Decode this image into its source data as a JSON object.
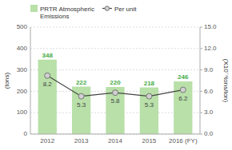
{
  "chart_data": {
    "type": "bar",
    "categories": [
      "2012",
      "2013",
      "2014",
      "2015",
      "2016 (FY)"
    ],
    "series": [
      {
        "name": "PRTR Atmospheric\nEmissions",
        "type": "bar",
        "color": "#b8e0a8",
        "values": [
          348,
          222,
          220,
          218,
          246
        ]
      },
      {
        "name": "Per unit",
        "type": "line",
        "axis": "y2",
        "color": "#444444",
        "marker": "circle",
        "values": [
          8.2,
          5.3,
          5.8,
          5.3,
          6.2
        ]
      }
    ],
    "y_label": "(tons)",
    "y2_label": "(X10⁻⁴tons/ton)",
    "ylim": [
      0,
      500
    ],
    "yticks": [
      0,
      100,
      200,
      300,
      400,
      500
    ],
    "y2lim": [
      0,
      15.0
    ],
    "y2ticks": [
      {
        "value": 0.0,
        "label": "0.0"
      },
      {
        "value": 3.0,
        "label": "3.0"
      },
      {
        "value": 6.0,
        "label": "6.0"
      },
      {
        "value": 9.0,
        "label": "9.0"
      },
      {
        "value": 12.0,
        "label": "12.0"
      },
      {
        "value": 15.0,
        "label": "15.0"
      }
    ],
    "grid": true,
    "legend": "upper left",
    "data_labels": true
  }
}
